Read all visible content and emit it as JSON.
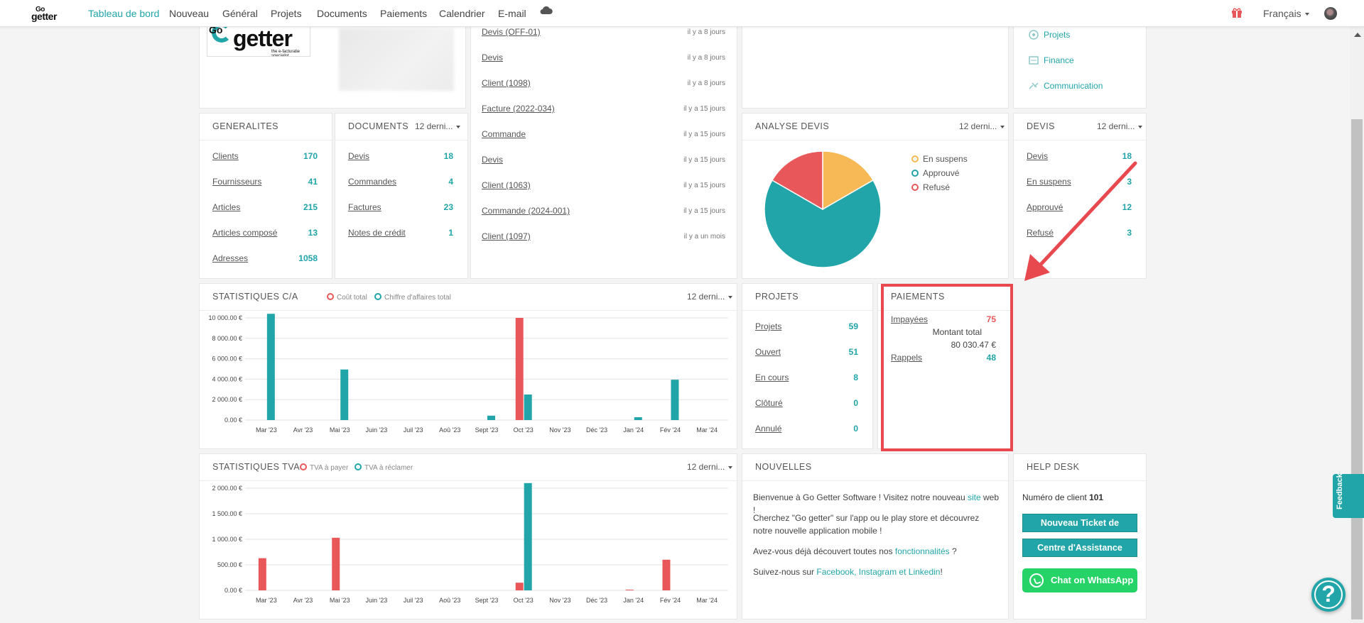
{
  "nav": {
    "logo_top": "Go",
    "logo_bottom": "getter",
    "items": [
      "Tableau de bord",
      "Nouveau",
      "Général",
      "Projets",
      "Documents",
      "Paiements",
      "Calendrier",
      "E-mail"
    ],
    "language": "Français"
  },
  "company": {
    "logo_text": "getter",
    "logo_tagline": "the e-facturatie specialist",
    "logo_top": "Go"
  },
  "activity": [
    {
      "label": "Devis (OFF-01)",
      "time": "il y a 8 jours"
    },
    {
      "label": "Devis",
      "time": "il y a 8 jours"
    },
    {
      "label": "Client (1098)",
      "time": "il y a 8 jours"
    },
    {
      "label": "Facture (2022-034)",
      "time": "il y a 15 jours"
    },
    {
      "label": "Commande",
      "time": "il y a 15 jours"
    },
    {
      "label": "Devis",
      "time": "il y a 15 jours"
    },
    {
      "label": "Client (1063)",
      "time": "il y a 15 jours"
    },
    {
      "label": "Commande (2024-001)",
      "time": "il y a 15 jours"
    },
    {
      "label": "Client (1097)",
      "time": "il y a un mois"
    }
  ],
  "links": [
    "Projets",
    "Finance",
    "Communication"
  ],
  "generalites": {
    "title": "GENERALITES",
    "rows": [
      {
        "label": "Clients",
        "value": "170"
      },
      {
        "label": "Fournisseurs",
        "value": "41"
      },
      {
        "label": "Articles",
        "value": "215"
      },
      {
        "label": "Articles composé",
        "value": "13"
      },
      {
        "label": "Adresses",
        "value": "1058"
      }
    ]
  },
  "documents": {
    "title": "DOCUMENTS",
    "filter": "12 derni...",
    "rows": [
      {
        "label": "Devis",
        "value": "18"
      },
      {
        "label": "Commandes",
        "value": "4"
      },
      {
        "label": "Factures",
        "value": "23"
      },
      {
        "label": "Notes de crédit",
        "value": "1"
      }
    ]
  },
  "analyse_devis": {
    "title": "ANALYSE DEVIS",
    "filter": "12 derni...",
    "legend": [
      "En suspens",
      "Approuvé",
      "Refusé"
    ]
  },
  "devis": {
    "title": "DEVIS",
    "filter": "12 derni...",
    "rows": [
      {
        "label": "Devis",
        "value": "18"
      },
      {
        "label": "En suspens",
        "value": "3"
      },
      {
        "label": "Approuvé",
        "value": "12"
      },
      {
        "label": "Refusé",
        "value": "3"
      }
    ]
  },
  "stats_ca": {
    "title": "STATISTIQUES C/A",
    "filter": "12 derni...",
    "legend": [
      "Coût total",
      "Chiffre d'affaires total"
    ]
  },
  "projets": {
    "title": "PROJETS",
    "rows": [
      {
        "label": "Projets",
        "value": "59"
      },
      {
        "label": "Ouvert",
        "value": "51"
      },
      {
        "label": "En cours",
        "value": "8"
      },
      {
        "label": "Clôturé",
        "value": "0"
      },
      {
        "label": "Annulé",
        "value": "0"
      }
    ]
  },
  "paiements": {
    "title": "PAIEMENTS",
    "impayees_label": "Impayées",
    "impayees_value": "75",
    "montant_label": "Montant total",
    "montant_value": "80 030.47 €",
    "rappels_label": "Rappels",
    "rappels_value": "48"
  },
  "stats_tva": {
    "title": "STATISTIQUES TVA",
    "filter": "12 derni...",
    "legend": [
      "TVA à payer",
      "TVA à réclamer"
    ]
  },
  "nouvelles": {
    "title": "NOUVELLES",
    "p1_a": "Bienvenue à Go Getter Software ! Visitez notre nouveau ",
    "p1_link": "site",
    "p1_b": " web !",
    "p2": "Cherchez \"Go getter\" sur l'app ou le play store et découvrez notre nouvelle application mobile !",
    "p3_a": "Avez-vous déjà découvert toutes nos ",
    "p3_link": "fonctionnalités",
    "p3_b": " ?",
    "p4_a": "Suivez-nous sur ",
    "p4_link": "Facebook, Instagram et Linkedin",
    "p4_b": "!"
  },
  "helpdesk": {
    "title": "HELP DESK",
    "client_label": "Numéro de client",
    "client_number": "101",
    "ticket_button": "Nouveau Ticket de Support",
    "assist_button": "Centre d'Assistance",
    "whatsapp_button": "Chat on WhatsApp"
  },
  "feedback_label": "Feedback",
  "help_label": "?",
  "colors": {
    "teal": "#22a5a8",
    "red": "#e8585a",
    "orange": "#f6b955"
  },
  "chart_data": [
    {
      "type": "bar",
      "title": "STATISTIQUES C/A",
      "categories": [
        "Mar '23",
        "Avr '23",
        "Mai '23",
        "Juin '23",
        "Juil '23",
        "Aoû '23",
        "Sept '23",
        "Oct '23",
        "Nov '23",
        "Déc '23",
        "Jan '24",
        "Fév '24",
        "Mar '24"
      ],
      "series": [
        {
          "name": "Coût total",
          "color": "#e8585a",
          "values": [
            0,
            0,
            0,
            0,
            0,
            0,
            0,
            10000,
            0,
            0,
            0,
            0,
            0
          ]
        },
        {
          "name": "Chiffre d'affaires total",
          "color": "#22a5a8",
          "values": [
            10400,
            0,
            4950,
            0,
            0,
            0,
            430,
            2500,
            0,
            0,
            280,
            3950,
            0
          ]
        }
      ],
      "yticks": [
        "0.00 €",
        "2 000.00 €",
        "4 000.00 €",
        "6 000.00 €",
        "8 000.00 €",
        "10 000.00 €"
      ],
      "ylim": [
        0,
        10000
      ]
    },
    {
      "type": "bar",
      "title": "STATISTIQUES TVA",
      "categories": [
        "Mar '23",
        "Avr '23",
        "Mai '23",
        "Juin '23",
        "Juil '23",
        "Aoû '23",
        "Sept '23",
        "Oct '23",
        "Nov '23",
        "Déc '23",
        "Jan '24",
        "Fév '24",
        "Mar '24"
      ],
      "series": [
        {
          "name": "TVA à payer",
          "color": "#e8585a",
          "values": [
            630,
            0,
            1030,
            0,
            0,
            0,
            0,
            150,
            0,
            0,
            8,
            600,
            0
          ]
        },
        {
          "name": "TVA à réclamer",
          "color": "#22a5a8",
          "values": [
            0,
            0,
            0,
            0,
            0,
            0,
            0,
            2100,
            0,
            0,
            0,
            0,
            0
          ]
        }
      ],
      "yticks": [
        "0.00 €",
        "500.00 €",
        "1 000.00 €",
        "1 500.00 €",
        "2 000.00 €"
      ],
      "ylim": [
        0,
        2000
      ]
    },
    {
      "type": "pie",
      "title": "ANALYSE DEVIS",
      "labels": [
        "En suspens",
        "Approuvé",
        "Refusé"
      ],
      "values": [
        3,
        12,
        3
      ],
      "colors": [
        "#f6b955",
        "#22a5a8",
        "#e8585a"
      ]
    }
  ]
}
